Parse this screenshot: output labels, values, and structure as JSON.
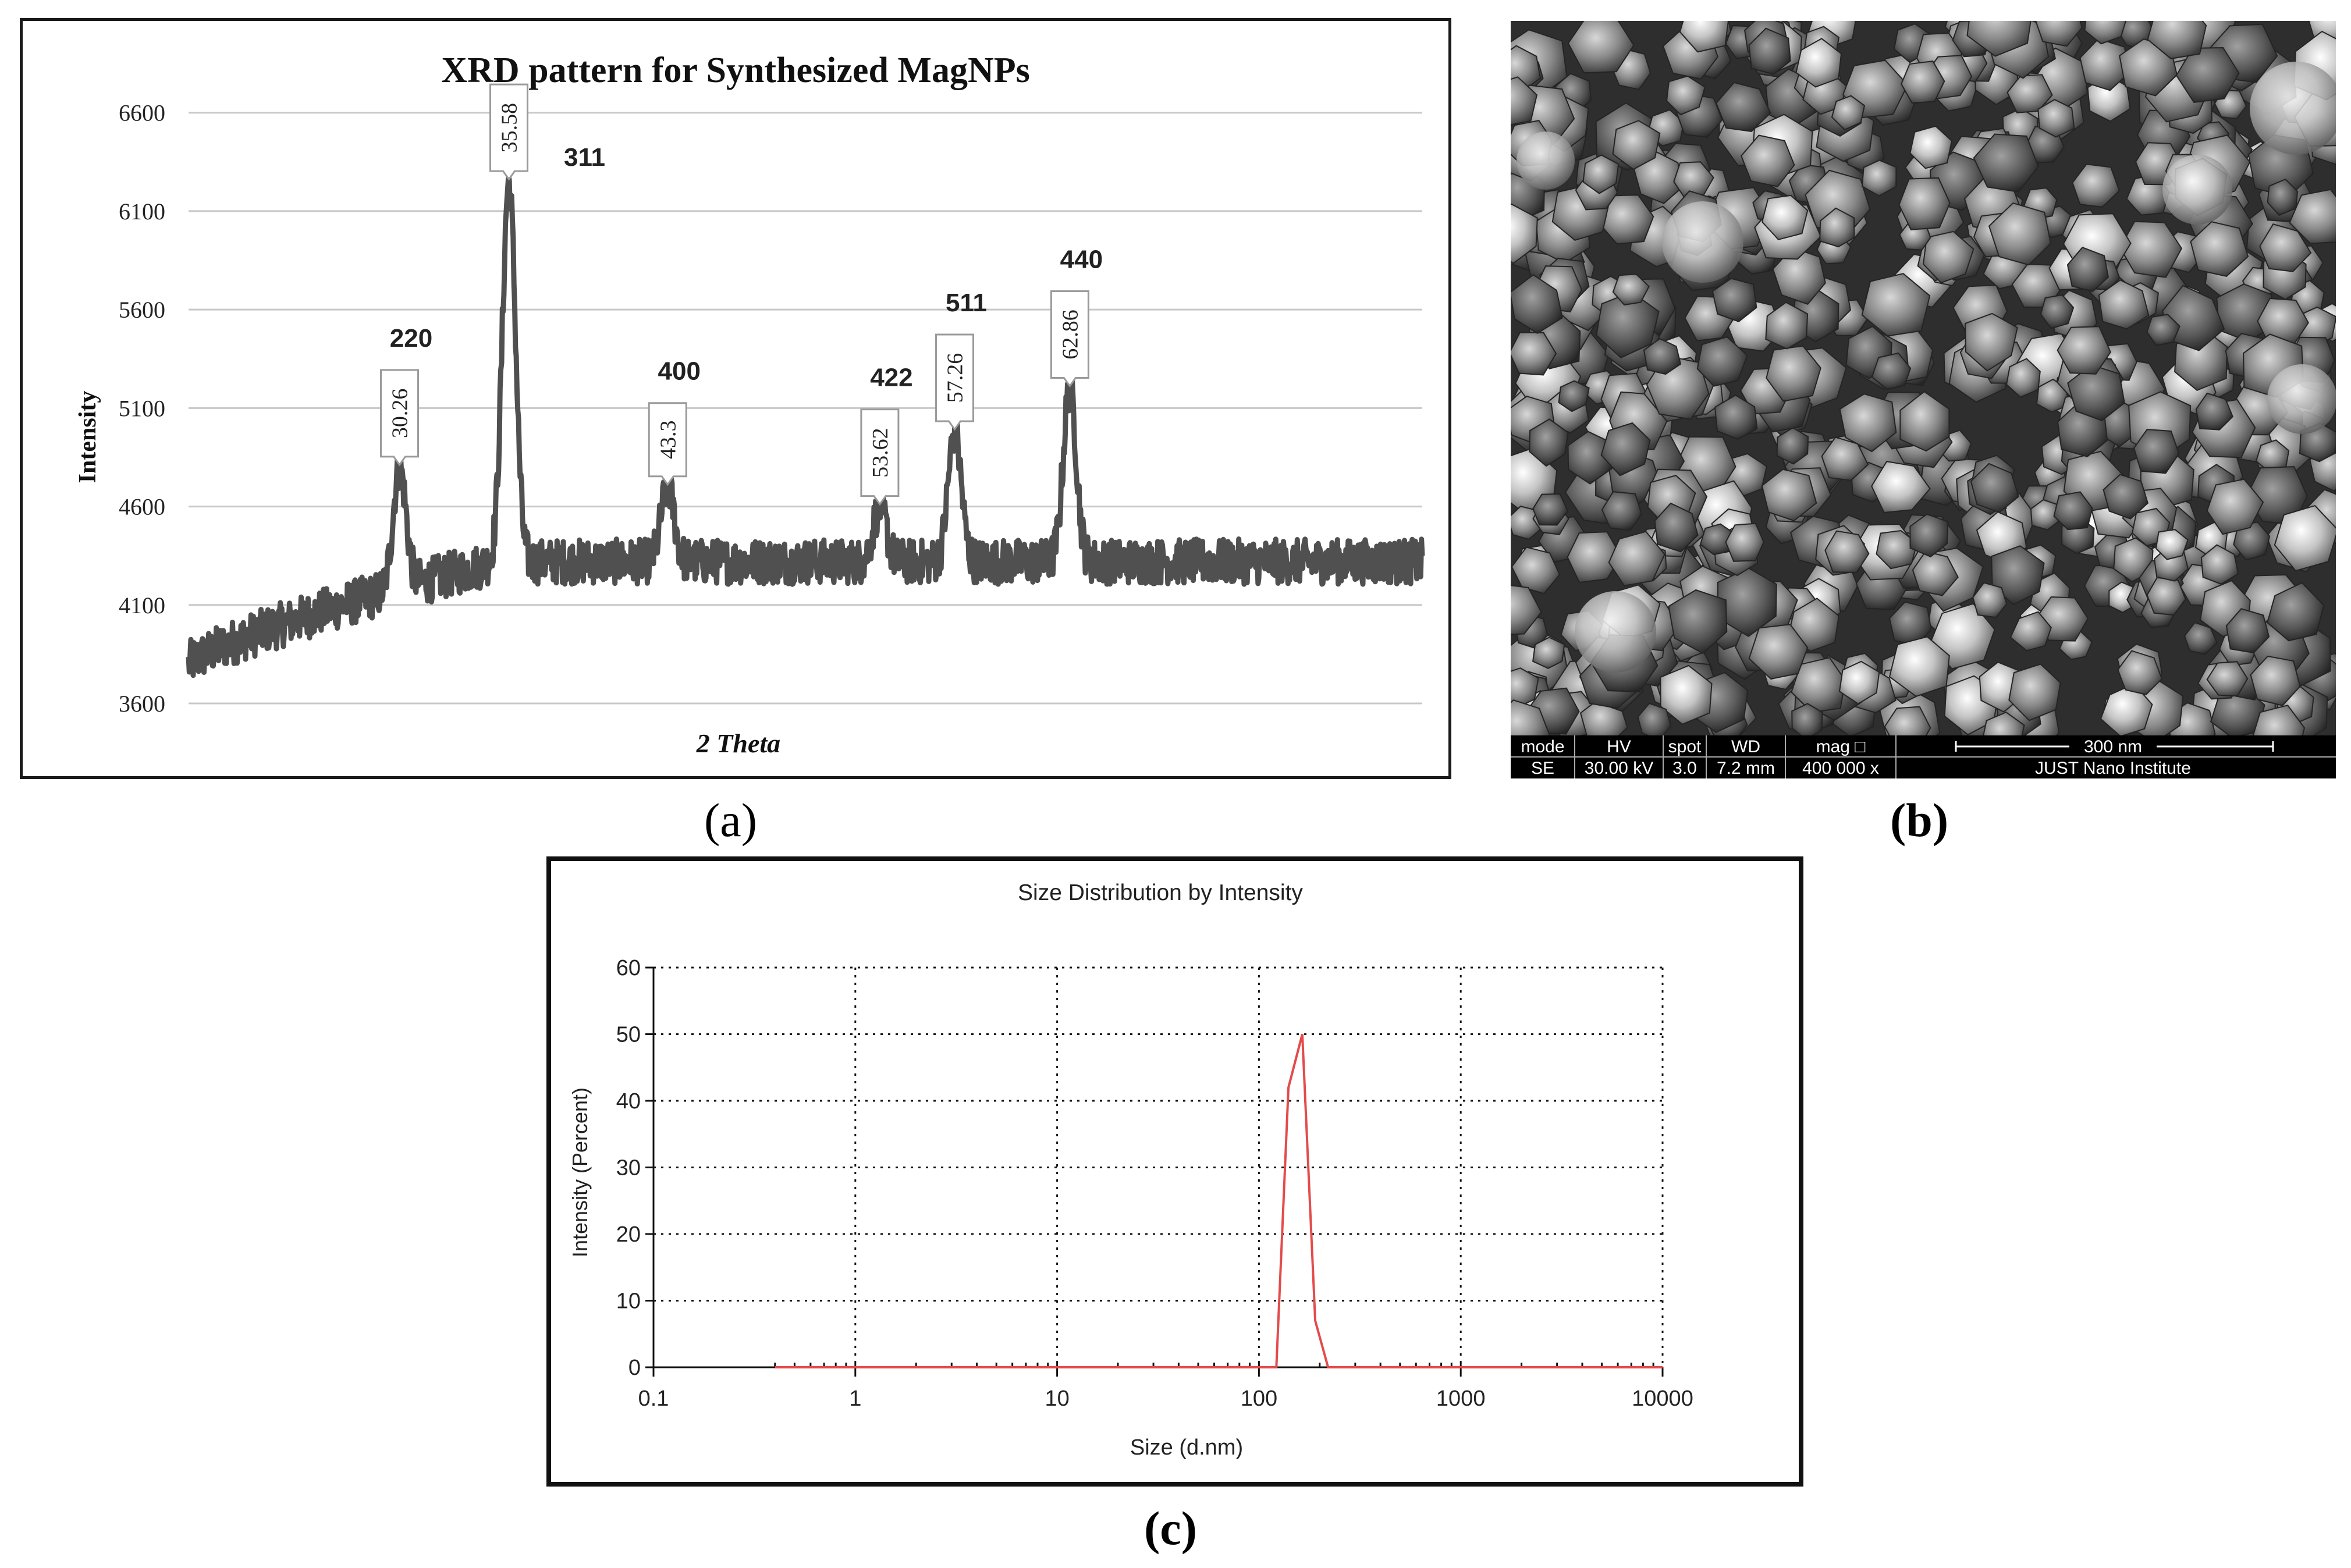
{
  "panel_labels": {
    "a": "(a)",
    "b": "(b)",
    "c": "(c)"
  },
  "colors": {
    "xrd_line": "#505050",
    "grid": "#c8c8c8",
    "dls_line": "#e34b4b",
    "sem_text": "#ffffff"
  },
  "chart_data": [
    {
      "id": "xrd",
      "type": "line",
      "title": "XRD pattern for Synthesized MagNPs",
      "xlabel": "2 Theta",
      "ylabel": "Intensity",
      "xlim": [
        20,
        80
      ],
      "ylim": [
        3600,
        6800
      ],
      "yticks": [
        3600,
        4100,
        4600,
        5100,
        5600,
        6100,
        6600
      ],
      "baseline": {
        "start": 3800,
        "plateau": 4320,
        "plateau_from": 35
      },
      "noise_amplitude": 230,
      "peaks": [
        {
          "x": 30.26,
          "top": 4800,
          "label": "30.26",
          "hkl": "220"
        },
        {
          "x": 35.58,
          "top": 6250,
          "label": "35.58",
          "hkl": "311"
        },
        {
          "x": 43.3,
          "top": 4700,
          "label": "43.3",
          "hkl": "400"
        },
        {
          "x": 53.62,
          "top": 4600,
          "label": "53.62",
          "hkl": "422"
        },
        {
          "x": 57.26,
          "top": 4980,
          "label": "57.26",
          "hkl": "511"
        },
        {
          "x": 62.86,
          "top": 5200,
          "label": "62.86",
          "hkl": "440"
        }
      ]
    },
    {
      "id": "dls",
      "type": "line",
      "title": "Size Distribution by Intensity",
      "xlabel": "Size (d.nm)",
      "ylabel": "Intensity (Percent)",
      "xscale": "log",
      "xlim": [
        0.1,
        10000
      ],
      "xticks": [
        0.1,
        1,
        10,
        100,
        1000,
        10000
      ],
      "xtick_labels": [
        "0.1",
        "1",
        "10",
        "100",
        "1000",
        "10000"
      ],
      "ylim": [
        0,
        60
      ],
      "yticks": [
        0,
        10,
        20,
        30,
        40,
        50,
        60
      ],
      "x": [
        0.4,
        100,
        122,
        140,
        164,
        190,
        220,
        10000
      ],
      "y": [
        0,
        0,
        0,
        42,
        50,
        7,
        0,
        0
      ]
    }
  ],
  "sem": {
    "headers": [
      "mode",
      "HV",
      "spot",
      "WD",
      "mag □"
    ],
    "values": [
      "SE",
      "30.00 kV",
      "3.0",
      "7.2 mm",
      "400 000 x"
    ],
    "scale_label": "300 nm",
    "institute": "JUST Nano Institute"
  }
}
